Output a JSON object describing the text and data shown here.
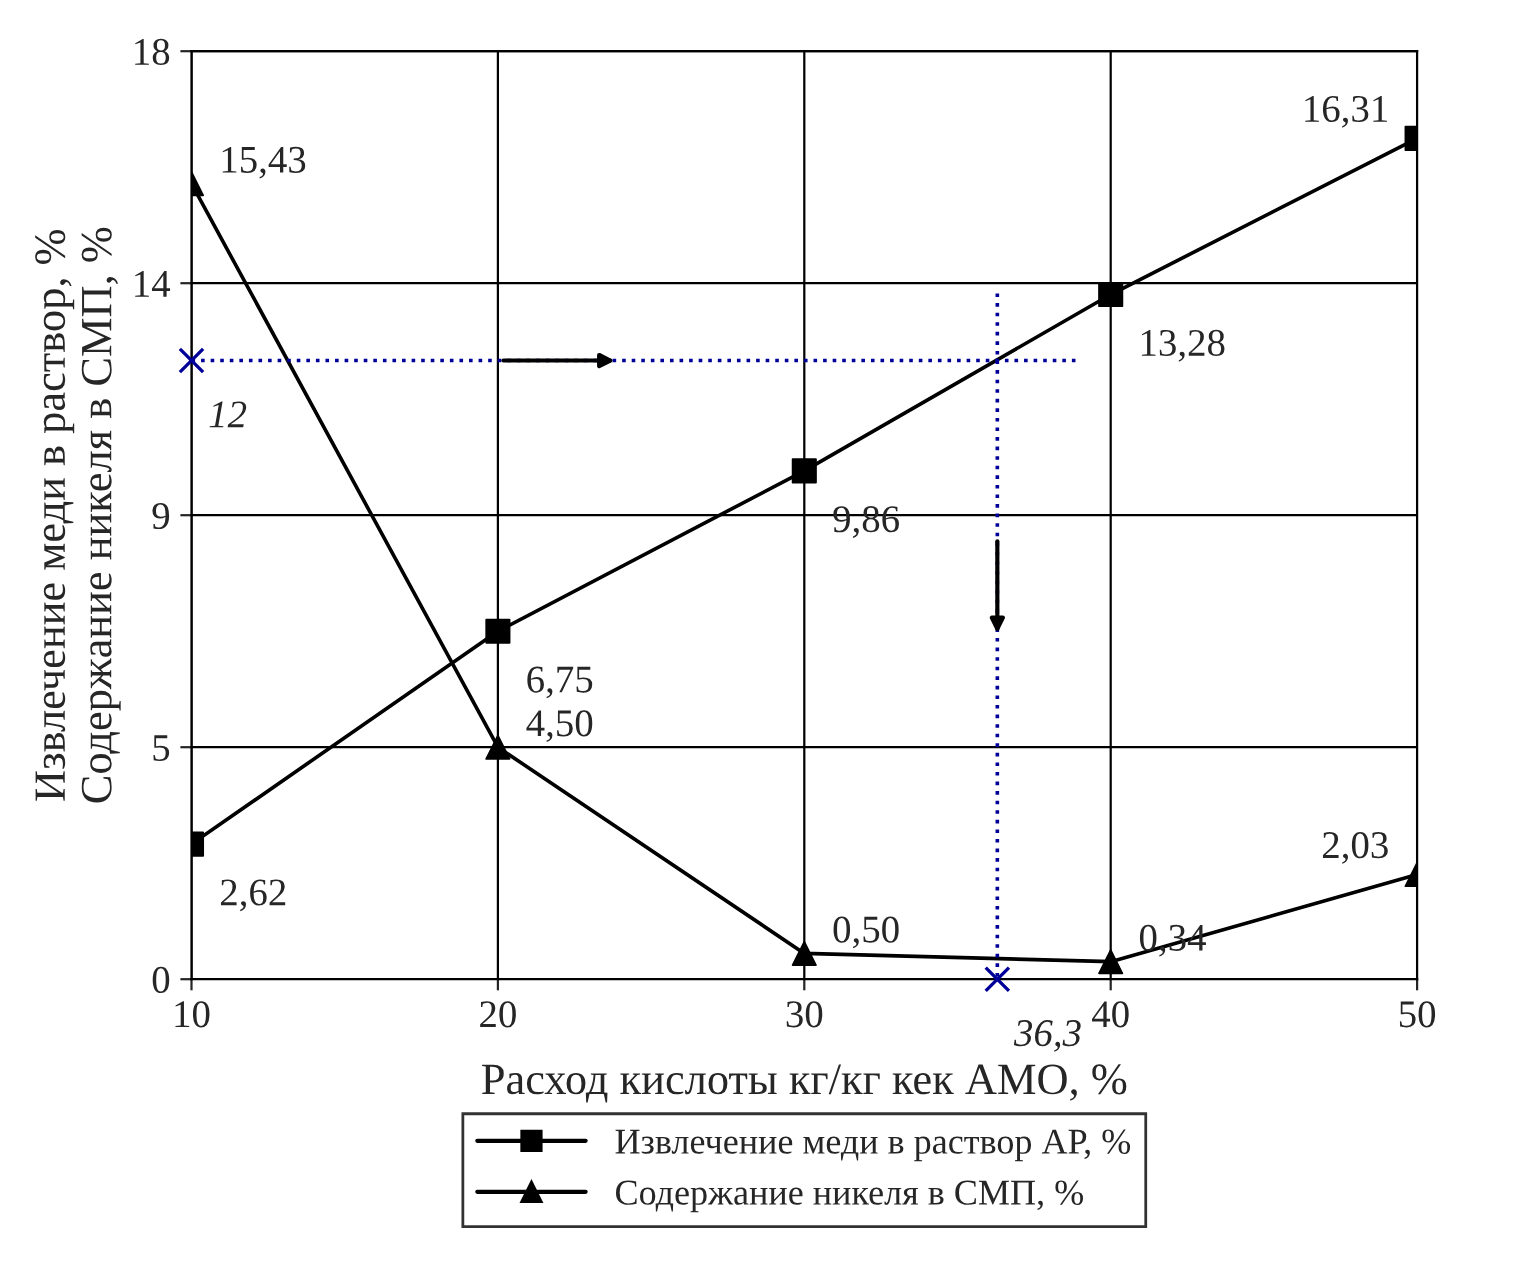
{
  "chart_data": {
    "type": "line",
    "xlabel": "Расход кислоты кг/кг кек АМО, %",
    "ylabel": "Извлечение меди в раствор, %\nСодержание никеля в СМП, %",
    "xlim": [
      10,
      50
    ],
    "xticks": [
      10,
      20,
      30,
      40,
      50
    ],
    "ylim": [
      0,
      18
    ],
    "yticks": [
      0,
      {
        "value": 4.5,
        "label": "5"
      },
      9,
      {
        "value": 13.5,
        "label": "14"
      },
      18
    ],
    "grid": true,
    "legend": "bottom",
    "line_style": "solid",
    "series": [
      {
        "name": "Извлечение меди в раствор АР, %",
        "color": "#000000",
        "marker": "square",
        "x": [
          10,
          20,
          30,
          40,
          50
        ],
        "values": [
          2.62,
          6.75,
          9.86,
          13.28,
          16.31
        ],
        "value_labels": [
          "2,62",
          "6,75",
          "9,86",
          "13,28",
          "16,31"
        ]
      },
      {
        "name": "Содержание никеля в СМП, %",
        "color": "#000000",
        "marker": "triangle",
        "x": [
          10,
          20,
          30,
          40,
          50
        ],
        "values": [
          15.43,
          4.5,
          0.5,
          0.34,
          2.03
        ],
        "value_labels": [
          "15,43",
          "4,50",
          "0,50",
          "0,34",
          "2,03"
        ]
      },
      {
        "color": "#000099",
        "marker": "none",
        "line_style": "dotted",
        "x": [
          10,
          39
        ],
        "values": [
          12,
          12
        ]
      },
      {
        "color": "#000099",
        "marker": "none",
        "line_style": "dotted",
        "x": [
          36.3,
          36.3
        ],
        "values": [
          13.3,
          0
        ]
      },
      {
        "type": "scatter",
        "color": "#000099",
        "marker": "cross",
        "x": [
          10,
          36.3
        ],
        "values": [
          12,
          0
        ]
      }
    ],
    "annotations": [
      {
        "text": "12",
        "x": 10,
        "y": 12
      },
      {
        "text": "36,3",
        "x": 36.3,
        "y": 0
      }
    ]
  }
}
